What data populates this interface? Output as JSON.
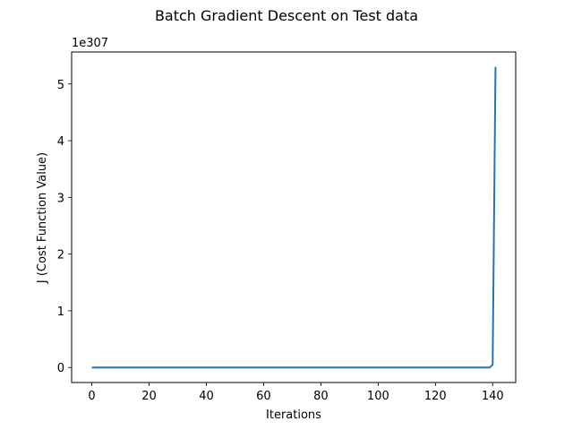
{
  "chart_data": {
    "type": "line",
    "title": "Batch Gradient Descent on Test data",
    "xlabel": "Iterations",
    "ylabel": "J (Cost Function Value)",
    "y_offset_label": "1e307",
    "xlim": [
      -7.05,
      148.05
    ],
    "ylim": [
      -0.265,
      5.565
    ],
    "x_ticks": [
      0,
      20,
      40,
      60,
      80,
      100,
      120,
      140
    ],
    "y_ticks": [
      0,
      1,
      2,
      3,
      4,
      5
    ],
    "grid": false,
    "series": [
      {
        "color": "#1f77b4",
        "x": [
          0,
          20,
          40,
          60,
          80,
          100,
          120,
          138,
          139,
          140,
          141
        ],
        "y": [
          0,
          0,
          0,
          0,
          0,
          0,
          0,
          0,
          0.002,
          0.05,
          5.3
        ]
      }
    ]
  }
}
